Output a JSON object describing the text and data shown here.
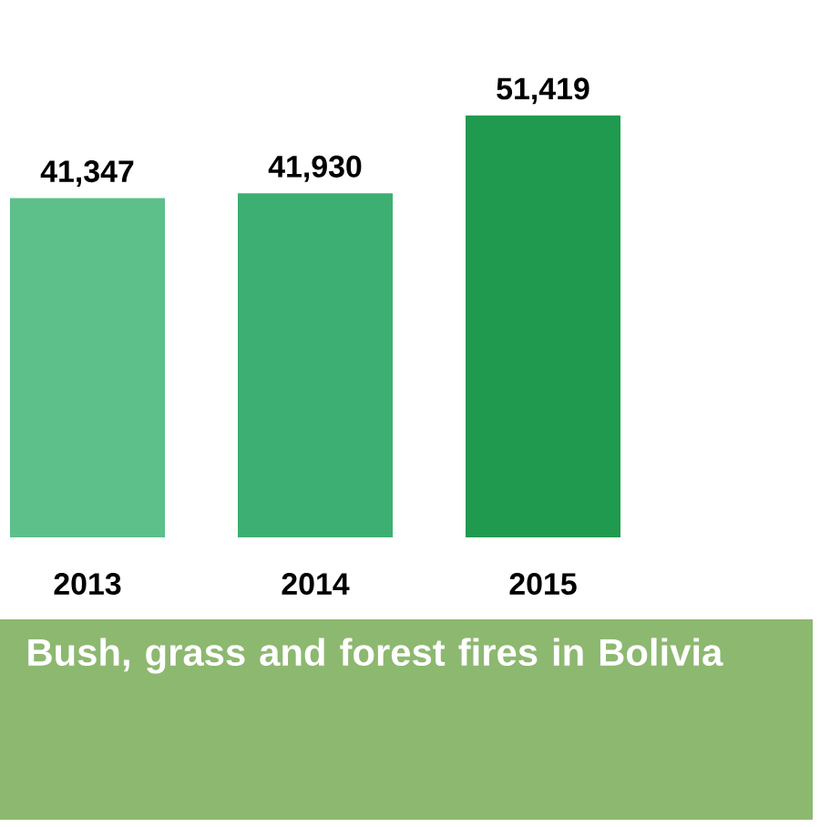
{
  "chart_data": {
    "type": "bar",
    "title": "Bush, grass and forest fires in Bolivia",
    "categories": [
      "2013",
      "2014",
      "2015"
    ],
    "values": [
      41347,
      41930,
      51419
    ],
    "colors": [
      "#5dbf8a",
      "#3daf72",
      "#1f9a4f"
    ],
    "value_labels": [
      "41,347",
      "41,930",
      "51,419"
    ]
  }
}
